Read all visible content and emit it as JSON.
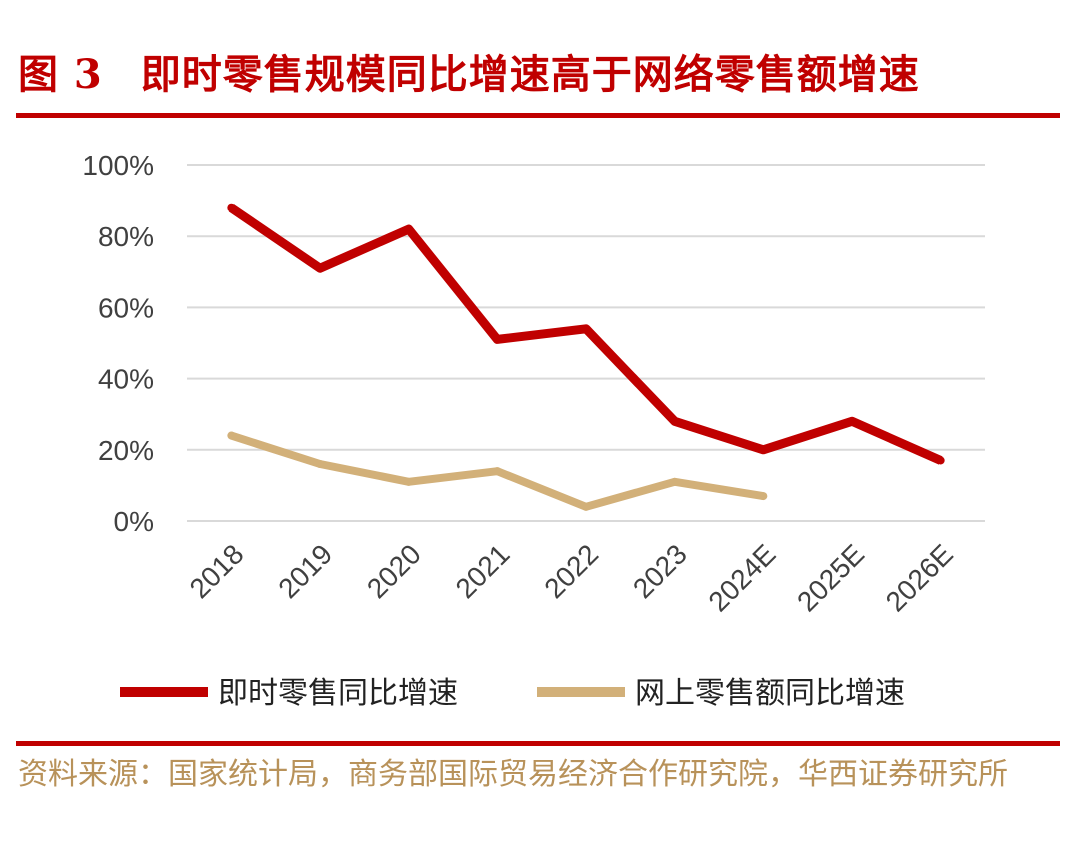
{
  "figure": {
    "number": "图 3",
    "title": "即时零售规模同比增速高于网络零售额增速",
    "source": "资料来源：国家统计局，商务部国际贸易经济合作研究院，华西证券研究所"
  },
  "colors": {
    "accent": "#c00000",
    "series1": "#c00000",
    "series2": "#d2b079",
    "source_text": "#b8925a",
    "grid": "#d9d9d9",
    "tick_text": "#404040"
  },
  "chart_data": {
    "type": "line",
    "title": "",
    "xlabel": "",
    "ylabel": "",
    "categories": [
      "2018",
      "2019",
      "2020",
      "2021",
      "2022",
      "2023",
      "2024E",
      "2025E",
      "2026E"
    ],
    "yticks": [
      "0%",
      "20%",
      "40%",
      "60%",
      "80%",
      "100%"
    ],
    "ylim": [
      0,
      100
    ],
    "grid": true,
    "legend_position": "bottom",
    "series": [
      {
        "name": "即时零售同比增速",
        "values": [
          88,
          71,
          82,
          51,
          54,
          28,
          20,
          28,
          17
        ]
      },
      {
        "name": "网上零售额同比增速",
        "values": [
          24,
          16,
          11,
          14,
          4,
          11,
          7,
          null,
          null
        ]
      }
    ]
  }
}
